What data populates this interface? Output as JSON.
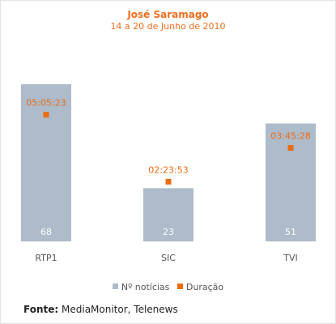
{
  "chart_data": {
    "type": "bar",
    "title": "José Saramago",
    "subtitle": "14 a 20 de Junho de 2010",
    "categories": [
      "RTP1",
      "SIC",
      "TVI"
    ],
    "series": [
      {
        "name": "Nº notícias",
        "type": "bar",
        "values": [
          68,
          23,
          51
        ]
      },
      {
        "name": "Duração",
        "type": "scatter",
        "values": [
          "05:05:23",
          "02:23:53",
          "03:45:28"
        ]
      }
    ],
    "colors": {
      "bar": "#adbbcb",
      "marker": "#ec6b12",
      "title": "#ee6f1f",
      "bar_label": "#ffffff",
      "category_label": "#555555"
    },
    "legend_position": "bottom",
    "grid": false
  },
  "source": {
    "label": "Fonte:",
    "text": "MediaMonitor, Telenews"
  }
}
